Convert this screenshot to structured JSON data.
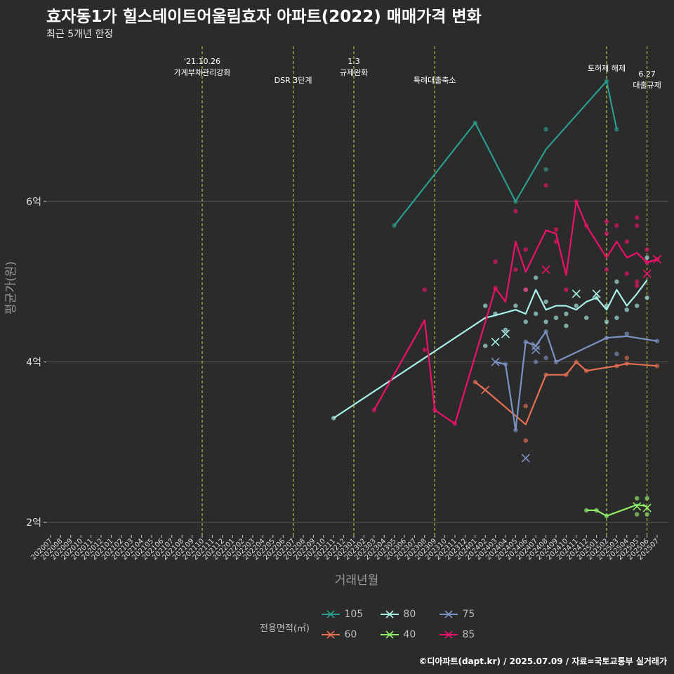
{
  "header": {
    "title": "효자동1가 힐스테이트어울림효자 아파트(2022) 매매가격 변화",
    "subtitle": "최근 5개년 한정"
  },
  "caption": "©디아파트(dapt.kr) / 2025.07.09 / 자료=국토교통부 실거래가",
  "legend": {
    "title": "전용면적(㎡)",
    "items": [
      {
        "label": "105",
        "color": "#2a9d8f"
      },
      {
        "label": "60",
        "color": "#e76f51"
      },
      {
        "label": "80",
        "color": "#a8f0e8"
      },
      {
        "label": "40",
        "color": "#90ee68"
      },
      {
        "label": "75",
        "color": "#7b93c4"
      },
      {
        "label": "85",
        "color": "#f0106a"
      }
    ]
  },
  "chart_data": {
    "type": "line",
    "xlabel": "거래년월",
    "ylabel": "평균가(원)",
    "ylim": [
      1.85,
      6.5
    ],
    "yticks": [
      {
        "value": 2,
        "label": "2억"
      },
      {
        "value": 4,
        "label": "4억"
      },
      {
        "value": 6,
        "label": "6억"
      }
    ],
    "x_categories": [
      "202007",
      "202008",
      "202009",
      "202010",
      "202011",
      "202012",
      "202101",
      "202102",
      "202103",
      "202104",
      "202105",
      "202106",
      "202107",
      "202108",
      "202109",
      "202110",
      "202111",
      "202112",
      "202201",
      "202202",
      "202203",
      "202204",
      "202205",
      "202206",
      "202207",
      "202208",
      "202209",
      "202210",
      "202211",
      "202212",
      "202301",
      "202302",
      "202303",
      "202304",
      "202305",
      "202306",
      "202307",
      "202308",
      "202309",
      "202310",
      "202311",
      "202312",
      "202401",
      "202402",
      "202403",
      "202404",
      "202405",
      "202406",
      "202407",
      "202408",
      "202409",
      "202410",
      "202411",
      "202412",
      "202501",
      "202502",
      "202503",
      "202504",
      "202505",
      "202506",
      "202507"
    ],
    "events": [
      {
        "x": "202110",
        "lines": [
          "'21.10.26",
          "가계부채관리강화"
        ],
        "row": 1
      },
      {
        "x": "202207",
        "lines": [
          "DSR 3단계"
        ],
        "row": 2
      },
      {
        "x": "202301",
        "lines": [
          "1.3",
          "규제완화"
        ],
        "row": 1
      },
      {
        "x": "202309",
        "lines": [
          "특례대출축소"
        ],
        "row": 2
      },
      {
        "x": "202502",
        "lines": [
          "토허제 해제"
        ],
        "row": 1
      },
      {
        "x": "202506",
        "lines": [
          "6.27",
          "대출규제"
        ],
        "row": 2
      }
    ],
    "series": [
      {
        "name": "105",
        "color": "#2a9d8f",
        "x": [
          "202305",
          "202401",
          "202405",
          "202408",
          "202502",
          "202503"
        ],
        "y": [
          5.7,
          6.98,
          6.0,
          6.65,
          7.5,
          6.9
        ],
        "points": [
          [
            "202305",
            5.7
          ],
          [
            "202401",
            6.98
          ],
          [
            "202405",
            6.0
          ],
          [
            "202408",
            6.9
          ],
          [
            "202408",
            6.4
          ],
          [
            "202502",
            7.5
          ],
          [
            "202503",
            6.9
          ]
        ],
        "markers": []
      },
      {
        "name": "60",
        "color": "#e76f51",
        "x": [
          "202401",
          "202402",
          "202406",
          "202408",
          "202410",
          "202411",
          "202412",
          "202503",
          "202504",
          "202507"
        ],
        "y": [
          3.75,
          3.65,
          3.22,
          3.84,
          3.84,
          4.0,
          3.89,
          3.95,
          3.98,
          3.95
        ],
        "points": [
          [
            "202401",
            3.75
          ],
          [
            "202406",
            3.45
          ],
          [
            "202406",
            3.02
          ],
          [
            "202408",
            3.84
          ],
          [
            "202410",
            3.84
          ],
          [
            "202411",
            4.0
          ],
          [
            "202412",
            3.89
          ],
          [
            "202503",
            3.95
          ],
          [
            "202504",
            3.98
          ],
          [
            "202504",
            4.05
          ],
          [
            "202507",
            3.95
          ]
        ],
        "markers": [
          [
            "202402",
            3.65
          ]
        ]
      },
      {
        "name": "80",
        "color": "#a8f0e8",
        "x": [
          "202211",
          "202402",
          "202403",
          "202405",
          "202406",
          "202407",
          "202408",
          "202409",
          "202410",
          "202411",
          "202412",
          "202501",
          "202502",
          "202503",
          "202504",
          "202505",
          "202506"
        ],
        "y": [
          3.3,
          4.55,
          4.58,
          4.65,
          4.6,
          4.9,
          4.65,
          4.7,
          4.7,
          4.65,
          4.75,
          4.8,
          4.65,
          4.9,
          4.7,
          4.85,
          5.02
        ],
        "points": [
          [
            "202211",
            3.3
          ],
          [
            "202402",
            4.7
          ],
          [
            "202402",
            4.2
          ],
          [
            "202403",
            4.6
          ],
          [
            "202404",
            4.4
          ],
          [
            "202405",
            4.7
          ],
          [
            "202406",
            4.5
          ],
          [
            "202406",
            4.9
          ],
          [
            "202407",
            5.05
          ],
          [
            "202407",
            4.6
          ],
          [
            "202408",
            4.75
          ],
          [
            "202408",
            4.5
          ],
          [
            "202409",
            4.55
          ],
          [
            "202410",
            4.45
          ],
          [
            "202410",
            4.6
          ],
          [
            "202411",
            4.7
          ],
          [
            "202412",
            4.55
          ],
          [
            "202501",
            4.8
          ],
          [
            "202502",
            4.7
          ],
          [
            "202502",
            4.5
          ],
          [
            "202503",
            5.0
          ],
          [
            "202503",
            4.55
          ],
          [
            "202504",
            4.65
          ],
          [
            "202505",
            4.7
          ],
          [
            "202506",
            5.3
          ],
          [
            "202506",
            4.8
          ]
        ],
        "markers": [
          [
            "202403",
            4.25
          ],
          [
            "202404",
            4.35
          ],
          [
            "202411",
            4.85
          ],
          [
            "202501",
            4.85
          ]
        ]
      },
      {
        "name": "40",
        "color": "#90ee68",
        "x": [
          "202412",
          "202501",
          "202502",
          "202505",
          "202506"
        ],
        "y": [
          2.15,
          2.15,
          2.08,
          2.22,
          2.2
        ],
        "points": [
          [
            "202412",
            2.15
          ],
          [
            "202501",
            2.15
          ],
          [
            "202502",
            2.08
          ],
          [
            "202505",
            2.3
          ],
          [
            "202505",
            2.1
          ],
          [
            "202506",
            2.3
          ],
          [
            "202506",
            2.1
          ]
        ],
        "markers": [
          [
            "202505",
            2.2
          ],
          [
            "202506",
            2.18
          ]
        ]
      },
      {
        "name": "75",
        "color": "#7b93c4",
        "x": [
          "202403",
          "202404",
          "202405",
          "202406",
          "202407",
          "202408",
          "202409",
          "202502",
          "202504",
          "202507"
        ],
        "y": [
          4.0,
          3.97,
          3.15,
          4.25,
          4.2,
          4.38,
          4.0,
          4.3,
          4.32,
          4.26
        ],
        "points": [
          [
            "202404",
            3.97
          ],
          [
            "202405",
            3.15
          ],
          [
            "202406",
            4.25
          ],
          [
            "202407",
            4.0
          ],
          [
            "202408",
            4.38
          ],
          [
            "202408",
            4.05
          ],
          [
            "202409",
            4.0
          ],
          [
            "202502",
            4.3
          ],
          [
            "202503",
            4.1
          ],
          [
            "202504",
            4.35
          ],
          [
            "202507",
            4.26
          ]
        ],
        "markers": [
          [
            "202403",
            4.0
          ],
          [
            "202406",
            2.8
          ],
          [
            "202407",
            4.15
          ],
          [
            "202407",
            4.2
          ]
        ]
      },
      {
        "name": "85",
        "color": "#f0106a",
        "x": [
          "202303",
          "202308",
          "202309",
          "202311",
          "202403",
          "202404",
          "202405",
          "202406",
          "202408",
          "202409",
          "202410",
          "202411",
          "202412",
          "202502",
          "202503",
          "202504",
          "202505",
          "202506",
          "202507"
        ],
        "y": [
          3.4,
          4.52,
          3.4,
          3.23,
          4.92,
          4.75,
          5.5,
          5.12,
          5.64,
          5.6,
          5.08,
          6.0,
          5.7,
          5.3,
          5.5,
          5.3,
          5.36,
          5.24,
          5.28
        ],
        "points": [
          [
            "202303",
            3.4
          ],
          [
            "202308",
            4.9
          ],
          [
            "202308",
            4.15
          ],
          [
            "202309",
            3.4
          ],
          [
            "202311",
            3.23
          ],
          [
            "202403",
            5.25
          ],
          [
            "202403",
            4.92
          ],
          [
            "202405",
            5.88
          ],
          [
            "202405",
            5.15
          ],
          [
            "202406",
            5.4
          ],
          [
            "202406",
            4.9
          ],
          [
            "202408",
            6.2
          ],
          [
            "202409",
            5.65
          ],
          [
            "202409",
            5.5
          ],
          [
            "202410",
            4.9
          ],
          [
            "202411",
            6.0
          ],
          [
            "202412",
            5.7
          ],
          [
            "202502",
            5.75
          ],
          [
            "202502",
            5.6
          ],
          [
            "202502",
            5.15
          ],
          [
            "202503",
            5.7
          ],
          [
            "202504",
            5.5
          ],
          [
            "202504",
            5.1
          ],
          [
            "202505",
            5.8
          ],
          [
            "202505",
            5.7
          ],
          [
            "202505",
            5.0
          ],
          [
            "202505",
            4.95
          ],
          [
            "202506",
            5.4
          ],
          [
            "202506",
            5.24
          ],
          [
            "202507",
            5.28
          ]
        ],
        "markers": [
          [
            "202408",
            5.15
          ],
          [
            "202506",
            5.1
          ],
          [
            "202507",
            5.28
          ]
        ]
      }
    ]
  }
}
